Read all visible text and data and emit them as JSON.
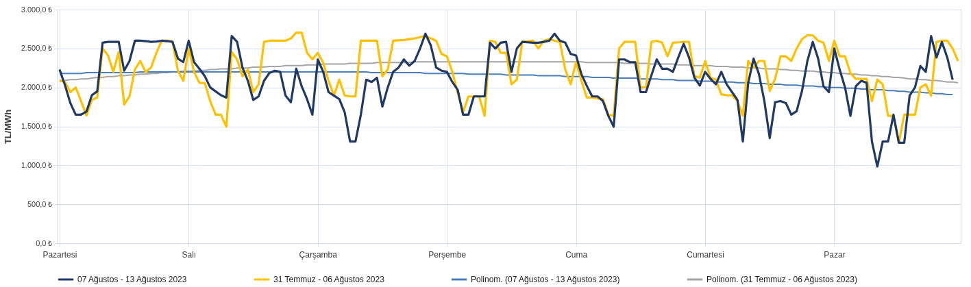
{
  "chart_data": {
    "type": "line",
    "ylabel": "TL/MWh",
    "categories": [
      "Pazartesi",
      null,
      null,
      null,
      null,
      null,
      null,
      null,
      null,
      null,
      null,
      null,
      null,
      null,
      null,
      null,
      null,
      null,
      null,
      null,
      null,
      null,
      null,
      null,
      "Salı",
      null,
      null,
      null,
      null,
      null,
      null,
      null,
      null,
      null,
      null,
      null,
      null,
      null,
      null,
      null,
      null,
      null,
      null,
      null,
      null,
      null,
      null,
      null,
      "Çarşamba",
      null,
      null,
      null,
      null,
      null,
      null,
      null,
      null,
      null,
      null,
      null,
      null,
      null,
      null,
      null,
      null,
      null,
      null,
      null,
      null,
      null,
      null,
      null,
      "Perşembe",
      null,
      null,
      null,
      null,
      null,
      null,
      null,
      null,
      null,
      null,
      null,
      null,
      null,
      null,
      null,
      null,
      null,
      null,
      null,
      null,
      null,
      null,
      null,
      "Cuma",
      null,
      null,
      null,
      null,
      null,
      null,
      null,
      null,
      null,
      null,
      null,
      null,
      null,
      null,
      null,
      null,
      null,
      null,
      null,
      null,
      null,
      null,
      null,
      "Cumartesi",
      null,
      null,
      null,
      null,
      null,
      null,
      null,
      null,
      null,
      null,
      null,
      null,
      null,
      null,
      null,
      null,
      null,
      null,
      null,
      null,
      null,
      null,
      null,
      "Pazar",
      null,
      null,
      null,
      null,
      null,
      null,
      null,
      null,
      null,
      null,
      null,
      null,
      null,
      null,
      null,
      null,
      null,
      null,
      null,
      null,
      null,
      null,
      null
    ],
    "ylim": [
      0,
      3000
    ],
    "yticks": [
      {
        "value": 0,
        "label": "0,0 ₺"
      },
      {
        "value": 500,
        "label": "500,0 ₺"
      },
      {
        "value": 1000,
        "label": "1.000,0 ₺"
      },
      {
        "value": 1500,
        "label": "1.500,0 ₺"
      },
      {
        "value": 2000,
        "label": "2.000,0 ₺"
      },
      {
        "value": 2500,
        "label": "2.500,0 ₺"
      },
      {
        "value": 3000,
        "label": "3.000,0 ₺"
      }
    ],
    "grid": true,
    "legend": "bottom",
    "series": [
      {
        "name": "07 Ağustos - 13 Ağustos 2023",
        "color": "#1f3864",
        "values": [
          2230,
          2030,
          1800,
          1650,
          1650,
          1690,
          1900,
          1950,
          2575,
          2585,
          2585,
          2585,
          2215,
          2340,
          2600,
          2600,
          2595,
          2585,
          2590,
          2600,
          2595,
          2585,
          2370,
          2325,
          2600,
          2325,
          2240,
          2145,
          2000,
          1950,
          1900,
          1870,
          2660,
          2585,
          2255,
          2085,
          1840,
          1885,
          2085,
          2185,
          2215,
          2200,
          1895,
          1810,
          2240,
          2015,
          1850,
          1650,
          2360,
          2200,
          1940,
          1895,
          1850,
          1680,
          1305,
          1305,
          1650,
          2100,
          2070,
          2125,
          1755,
          2000,
          2200,
          2255,
          2360,
          2280,
          2340,
          2500,
          2690,
          2540,
          2255,
          2215,
          2200,
          2070,
          1970,
          1650,
          1650,
          1885,
          1885,
          1885,
          2575,
          2500,
          2575,
          2585,
          2200,
          2500,
          2585,
          2580,
          2575,
          2575,
          2585,
          2600,
          2690,
          2600,
          2575,
          2430,
          2410,
          2170,
          2020,
          1885,
          1885,
          1825,
          1635,
          1495,
          2360,
          2360,
          2325,
          2325,
          1940,
          1940,
          2155,
          2360,
          2240,
          2240,
          2200,
          2385,
          2560,
          2385,
          2125,
          2025,
          2200,
          2110,
          2040,
          2200,
          2040,
          1940,
          1840,
          1305,
          2060,
          2370,
          2170,
          1825,
          1350,
          1810,
          1825,
          1800,
          1650,
          1695,
          1955,
          2340,
          2585,
          2370,
          2015,
          1940,
          2500,
          2230,
          2000,
          1635,
          2015,
          2085,
          2060,
          1305,
          985,
          1305,
          1305,
          1650,
          1290,
          1290,
          1895,
          2000,
          2275,
          2200,
          2660,
          2385,
          2585,
          2385,
          2100,
          null
        ]
      },
      {
        "name": "31 Temmuz - 06 Ağustos 2023",
        "color": "#ffc000",
        "values": [
          2085,
          2070,
          1940,
          2000,
          1825,
          1640,
          1840,
          1870,
          2500,
          2410,
          2200,
          2455,
          1780,
          1885,
          2230,
          2340,
          2200,
          2255,
          2445,
          2600,
          2600,
          2590,
          2215,
          2085,
          2500,
          2200,
          2060,
          2055,
          1825,
          1650,
          1650,
          1495,
          2455,
          2360,
          2145,
          2230,
          1940,
          2040,
          2585,
          2600,
          2600,
          2600,
          2600,
          2630,
          2705,
          2705,
          2445,
          2360,
          2445,
          2315,
          2085,
          1895,
          2100,
          1895,
          1885,
          1885,
          2600,
          2600,
          2600,
          2600,
          2145,
          2230,
          2600,
          2605,
          2610,
          2620,
          2630,
          2645,
          2660,
          2630,
          2600,
          2430,
          2400,
          2200,
          1930,
          1680,
          1885,
          1885,
          1885,
          1635,
          2600,
          2585,
          2445,
          2445,
          2040,
          2100,
          2585,
          2595,
          2600,
          2500,
          2600,
          2620,
          2600,
          2585,
          2230,
          2040,
          2325,
          2085,
          1870,
          1870,
          1860,
          1850,
          1650,
          1635,
          2500,
          2585,
          2585,
          2585,
          2000,
          2000,
          2585,
          2600,
          2575,
          2400,
          2575,
          2580,
          2585,
          2585,
          2145,
          2125,
          2340,
          2125,
          2100,
          1910,
          1900,
          1900,
          1825,
          1635,
          2340,
          2255,
          2340,
          2340,
          1955,
          2110,
          2400,
          2400,
          2340,
          2500,
          2620,
          2670,
          2670,
          2600,
          2575,
          2340,
          2600,
          2400,
          2400,
          2185,
          2110,
          2110,
          2110,
          1825,
          2100,
          2040,
          1635,
          1635,
          1290,
          1650,
          1650,
          1650,
          2000,
          2040,
          1895,
          2585,
          2600,
          2600,
          2500,
          2340
        ]
      },
      {
        "name": "Polinom. (07 Ağustos - 13 Ağustos 2023)",
        "color": "#4a7ebb",
        "values": [
          2180,
          2180,
          2180,
          2180,
          2180,
          2190,
          2190,
          2190,
          2190,
          2190,
          2190,
          2190,
          2190,
          2190,
          2190,
          2200,
          2200,
          2200,
          2200,
          2200,
          2200,
          2200,
          2200,
          2200,
          2200,
          2200,
          2200,
          2200,
          2200,
          2200,
          2200,
          2200,
          2200,
          2200,
          2200,
          2200,
          2200,
          2200,
          2200,
          2200,
          2200,
          2200,
          2200,
          2200,
          2200,
          2200,
          2200,
          2200,
          2200,
          2200,
          2200,
          2200,
          2200,
          2200,
          2200,
          2200,
          2200,
          2200,
          2190,
          2190,
          2190,
          2190,
          2190,
          2190,
          2190,
          2190,
          2190,
          2190,
          2180,
          2180,
          2180,
          2180,
          2180,
          2180,
          2180,
          2180,
          2170,
          2170,
          2170,
          2170,
          2170,
          2170,
          2170,
          2160,
          2160,
          2160,
          2160,
          2160,
          2160,
          2150,
          2150,
          2150,
          2150,
          2150,
          2140,
          2140,
          2140,
          2140,
          2140,
          2130,
          2130,
          2130,
          2130,
          2120,
          2120,
          2120,
          2120,
          2120,
          2110,
          2110,
          2110,
          2110,
          2100,
          2100,
          2100,
          2090,
          2090,
          2090,
          2090,
          2080,
          2080,
          2080,
          2070,
          2070,
          2070,
          2070,
          2060,
          2060,
          2060,
          2050,
          2050,
          2050,
          2040,
          2040,
          2040,
          2030,
          2030,
          2030,
          2020,
          2020,
          2020,
          2010,
          2010,
          2000,
          2000,
          2000,
          1990,
          1990,
          1990,
          1980,
          1980,
          1970,
          1970,
          1970,
          1960,
          1960,
          1950,
          1950,
          1940,
          1940,
          1940,
          1930,
          1930,
          1920,
          1920,
          1910,
          1910,
          null
        ]
      },
      {
        "name": "Polinom. (31 Temmuz - 06 Ağustos 2023)",
        "color": "#a5a5a5",
        "values": [
          2090,
          2090,
          2100,
          2100,
          2110,
          2110,
          2120,
          2130,
          2130,
          2140,
          2140,
          2150,
          2150,
          2160,
          2160,
          2170,
          2170,
          2180,
          2180,
          2190,
          2190,
          2200,
          2200,
          2210,
          2210,
          2210,
          2220,
          2220,
          2230,
          2230,
          2240,
          2240,
          2240,
          2250,
          2250,
          2250,
          2260,
          2260,
          2260,
          2270,
          2270,
          2270,
          2280,
          2280,
          2280,
          2280,
          2290,
          2290,
          2290,
          2300,
          2300,
          2300,
          2300,
          2300,
          2310,
          2310,
          2310,
          2310,
          2310,
          2320,
          2320,
          2320,
          2320,
          2320,
          2320,
          2320,
          2330,
          2330,
          2330,
          2330,
          2330,
          2330,
          2330,
          2330,
          2330,
          2330,
          2330,
          2330,
          2330,
          2330,
          2330,
          2330,
          2330,
          2330,
          2330,
          2330,
          2330,
          2330,
          2330,
          2330,
          2330,
          2330,
          2330,
          2330,
          2330,
          2330,
          2330,
          2330,
          2320,
          2320,
          2320,
          2320,
          2320,
          2320,
          2320,
          2310,
          2310,
          2310,
          2310,
          2310,
          2300,
          2300,
          2300,
          2300,
          2300,
          2290,
          2290,
          2290,
          2280,
          2280,
          2280,
          2280,
          2270,
          2270,
          2270,
          2260,
          2260,
          2260,
          2250,
          2250,
          2250,
          2240,
          2240,
          2240,
          2230,
          2230,
          2220,
          2220,
          2210,
          2210,
          2210,
          2200,
          2200,
          2190,
          2190,
          2180,
          2180,
          2170,
          2170,
          2160,
          2160,
          2150,
          2150,
          2140,
          2140,
          2130,
          2130,
          2120,
          2110,
          2110,
          2100,
          2100,
          2090,
          2090,
          2080,
          2070,
          2070,
          2060
        ]
      }
    ]
  }
}
